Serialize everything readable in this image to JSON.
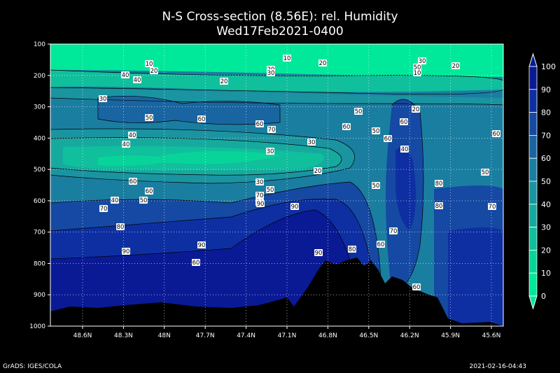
{
  "header": {
    "title": "N-S Cross-section (8.56E): rel. Humidity",
    "subtitle": "Wed17Feb2021-0400"
  },
  "footer": {
    "left": "GrADS: IGES/COLA",
    "right": "2021-02-16-04:43"
  },
  "chart_data": {
    "type": "heatmap",
    "title": "N-S Cross-section (8.56E): rel. Humidity",
    "subtitle": "Wed17Feb2021-0400",
    "x_ticks": [
      "48.6N",
      "48.3N",
      "48N",
      "47.7N",
      "47.4N",
      "47.1N",
      "46.8N",
      "46.5N",
      "46.2N",
      "45.9N",
      "45.6N"
    ],
    "y_ticks": [
      "100",
      "200",
      "300",
      "400",
      "500",
      "600",
      "700",
      "800",
      "900",
      "1000"
    ],
    "ylim": [
      100,
      1000
    ],
    "grid": true,
    "colorbar": {
      "levels": [
        0,
        10,
        20,
        30,
        40,
        50,
        60,
        70,
        80,
        90,
        100
      ],
      "colors": [
        "#00e89a",
        "#08d49a",
        "#10bf9c",
        "#16aa9f",
        "#1a94a0",
        "#1a7ea1",
        "#1965a2",
        "#1549a3",
        "#0e2fa2",
        "#0a1a95"
      ]
    },
    "contour_labels": [
      "10",
      "10",
      "20",
      "20",
      "30",
      "40",
      "20",
      "50",
      "10",
      "30",
      "40",
      "20",
      "20",
      "30",
      "50",
      "20",
      "50",
      "60",
      "60",
      "60",
      "50",
      "60",
      "60",
      "60",
      "70",
      "40",
      "40",
      "30",
      "30",
      "20",
      "40",
      "50",
      "50",
      "80",
      "60",
      "30",
      "60",
      "70",
      "80",
      "50",
      "40",
      "60",
      "50",
      "90",
      "70",
      "70",
      "90",
      "80",
      "70",
      "60",
      "90",
      "80",
      "90",
      "90",
      "60",
      "60"
    ]
  }
}
